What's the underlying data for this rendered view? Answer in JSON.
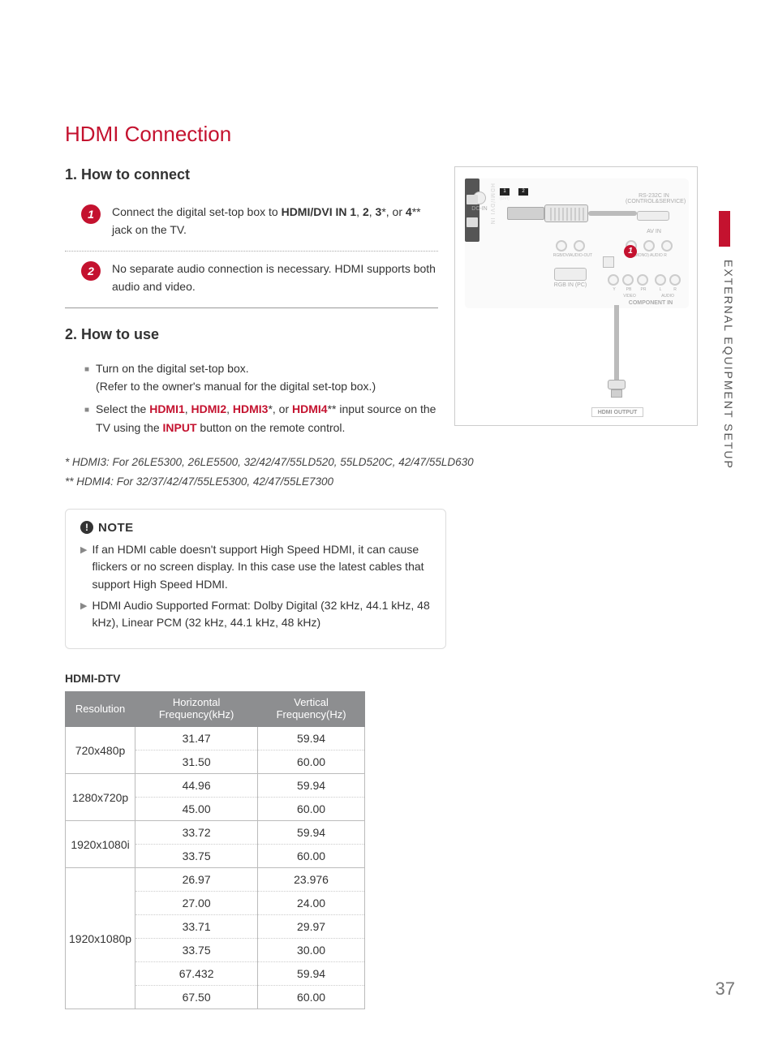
{
  "side_label": "EXTERNAL EQUIPMENT SETUP",
  "page_number": "37",
  "title": "HDMI Connection",
  "section1": {
    "heading": "1. How to connect",
    "steps": [
      {
        "num": "1",
        "pre": "Connect the digital set-top box to ",
        "bold": "HDMI/DVI IN 1",
        "mid": ", ",
        "b2": "2",
        "mid2": ", ",
        "b3": "3",
        "mid3": "*, or ",
        "b4": "4",
        "post": "** jack on the TV."
      },
      {
        "num": "2",
        "text": "No separate audio connection is necessary. HDMI supports both audio and video."
      }
    ]
  },
  "section2": {
    "heading": "2. How to use",
    "items": [
      {
        "line1": "Turn on the digital set-top box.",
        "line2": "(Refer to the owner's manual for the digital set-top box.)"
      },
      {
        "pre": "Select the ",
        "a1": "HDMI1",
        "c": ", ",
        "a2": "HDMI2",
        "a3": "HDMI3",
        "s3": "*, or ",
        "a4": "HDMI4",
        "s4": "** ",
        "mid": "input source on the TV using the ",
        "btn": "INPUT",
        "post": " button on the remote control."
      }
    ]
  },
  "footnotes": [
    "* HDMI3: For 26LE5300, 26LE5500, 32/42/47/55LD520, 55LD520C, 42/47/55LD630",
    "** HDMI4: For 32/37/42/47/55LE5300, 42/47/55LE7300"
  ],
  "note": {
    "title": "NOTE",
    "items": [
      "If an HDMI cable doesn't support High Speed HDMI, it can cause flickers or no screen display. In this case use the latest cables that support High Speed HDMI.",
      "HDMI Audio Supported Format: Dolby Digital (32 kHz, 44.1 kHz, 48 kHz), Linear PCM (32 kHz,  44.1 kHz, 48 kHz)"
    ]
  },
  "table": {
    "label": "HDMI-DTV",
    "headers": [
      "Resolution",
      "Horizontal Frequency(kHz)",
      "Vertical Frequency(Hz)"
    ],
    "groups": [
      {
        "res": "720x480p",
        "rows": [
          [
            "31.47",
            "59.94"
          ],
          [
            "31.50",
            "60.00"
          ]
        ]
      },
      {
        "res": "1280x720p",
        "rows": [
          [
            "44.96",
            "59.94"
          ],
          [
            "45.00",
            "60.00"
          ]
        ]
      },
      {
        "res": "1920x1080i",
        "rows": [
          [
            "33.72",
            "59.94"
          ],
          [
            "33.75",
            "60.00"
          ]
        ]
      },
      {
        "res": "1920x1080p",
        "rows": [
          [
            "26.97",
            "23.976"
          ],
          [
            "27.00",
            "24.00"
          ],
          [
            "33.71",
            "29.97"
          ],
          [
            "33.75",
            "30.00"
          ],
          [
            "67.432",
            "59.94"
          ],
          [
            "67.50",
            "60.00"
          ]
        ]
      }
    ]
  },
  "diagram": {
    "dc_in": "DC-IN",
    "hdmi_label": "HDMI/DVI IN",
    "port1": "1",
    "port1_sub": "(DVI)",
    "port2": "2",
    "rs232": "RS-232C IN",
    "rs232_sub": "(CONTROL&SERVICE)",
    "avin": "AV IN",
    "rgbin": "RGB IN (PC)",
    "comp": "COMPONENT IN",
    "video": "VIDEO",
    "audio": "AUDIO",
    "mono": "L(MONO)  AUDIO  R",
    "rgb_dvi": "RGB/DVI",
    "audio_out": "AUDIO-OUT",
    "y": "Y",
    "pb": "PB",
    "pr": "PR",
    "l": "L",
    "r": "R",
    "marker": "1",
    "hdmi_output": "HDMI OUTPUT"
  },
  "colors": {
    "brand": "#c4122f",
    "header_bg": "#8d8e90"
  }
}
